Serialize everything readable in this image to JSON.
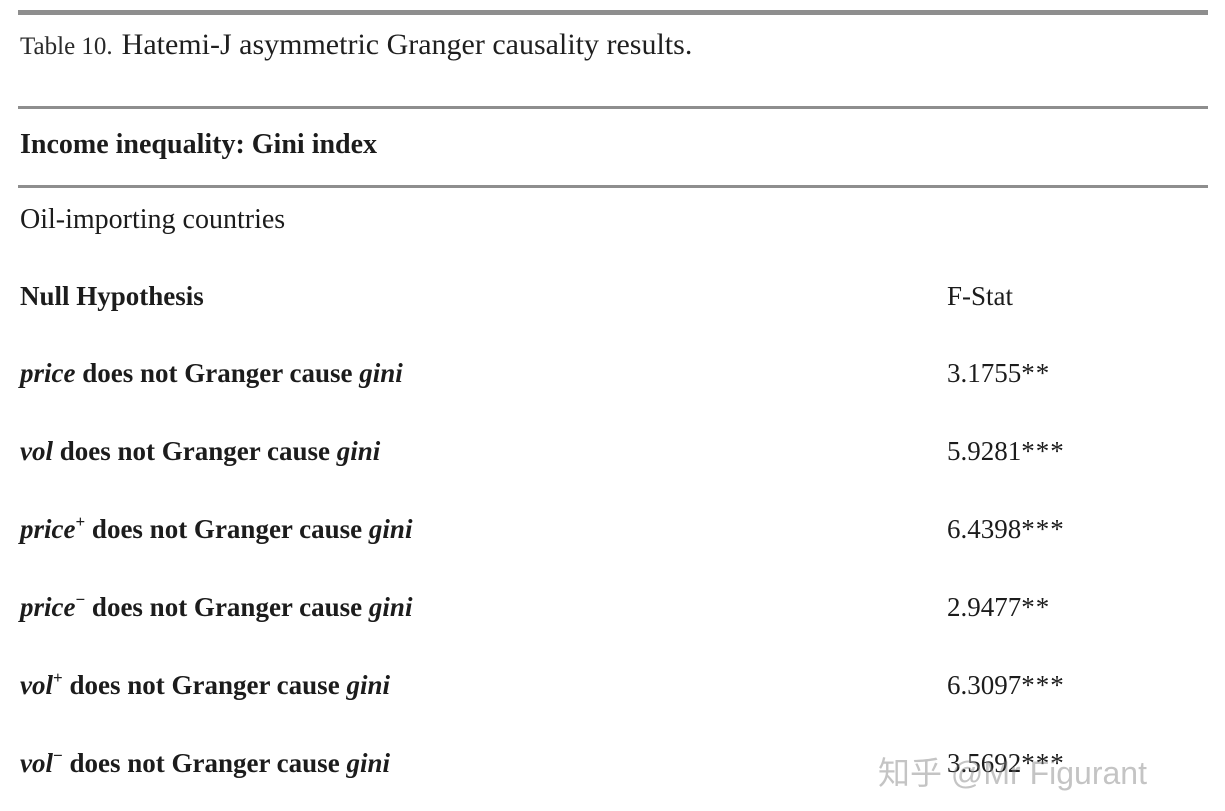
{
  "table": {
    "caption_label": "Table 10.",
    "caption_title": "Hatemi-J asymmetric Granger causality results.",
    "section_header": "Income inequality: Gini index",
    "group_header": "Oil-importing countries",
    "columns": {
      "hypothesis": "Null Hypothesis",
      "fstat": "F-Stat"
    },
    "rows": [
      {
        "var": "price",
        "sup": "",
        "middle": " does not Granger cause ",
        "target": "gini",
        "fstat": "3.1755",
        "stars": "**"
      },
      {
        "var": "vol",
        "sup": "",
        "middle": " does not Granger cause ",
        "target": "gini",
        "fstat": "5.9281",
        "stars": "***"
      },
      {
        "var": "price",
        "sup": "+",
        "middle": " does not Granger cause ",
        "target": "gini",
        "fstat": "6.4398",
        "stars": "***"
      },
      {
        "var": "price",
        "sup": "−",
        "middle": " does not Granger cause ",
        "target": "gini",
        "fstat": "2.9477",
        "stars": "**"
      },
      {
        "var": "vol",
        "sup": "+",
        "middle": " does not Granger cause ",
        "target": "gini",
        "fstat": "6.3097",
        "stars": "***"
      },
      {
        "var": "vol",
        "sup": "−",
        "middle": " does not Granger cause ",
        "target": "gini",
        "fstat": "3.5692",
        "stars": "***"
      }
    ]
  },
  "watermark": {
    "text": "知乎 @Mr Figurant"
  },
  "colors": {
    "text": "#1c1c1c",
    "rule_heavy": "#8e8e8e",
    "rule_light": "#8e8e8e",
    "watermark": "#c9c9c9"
  }
}
